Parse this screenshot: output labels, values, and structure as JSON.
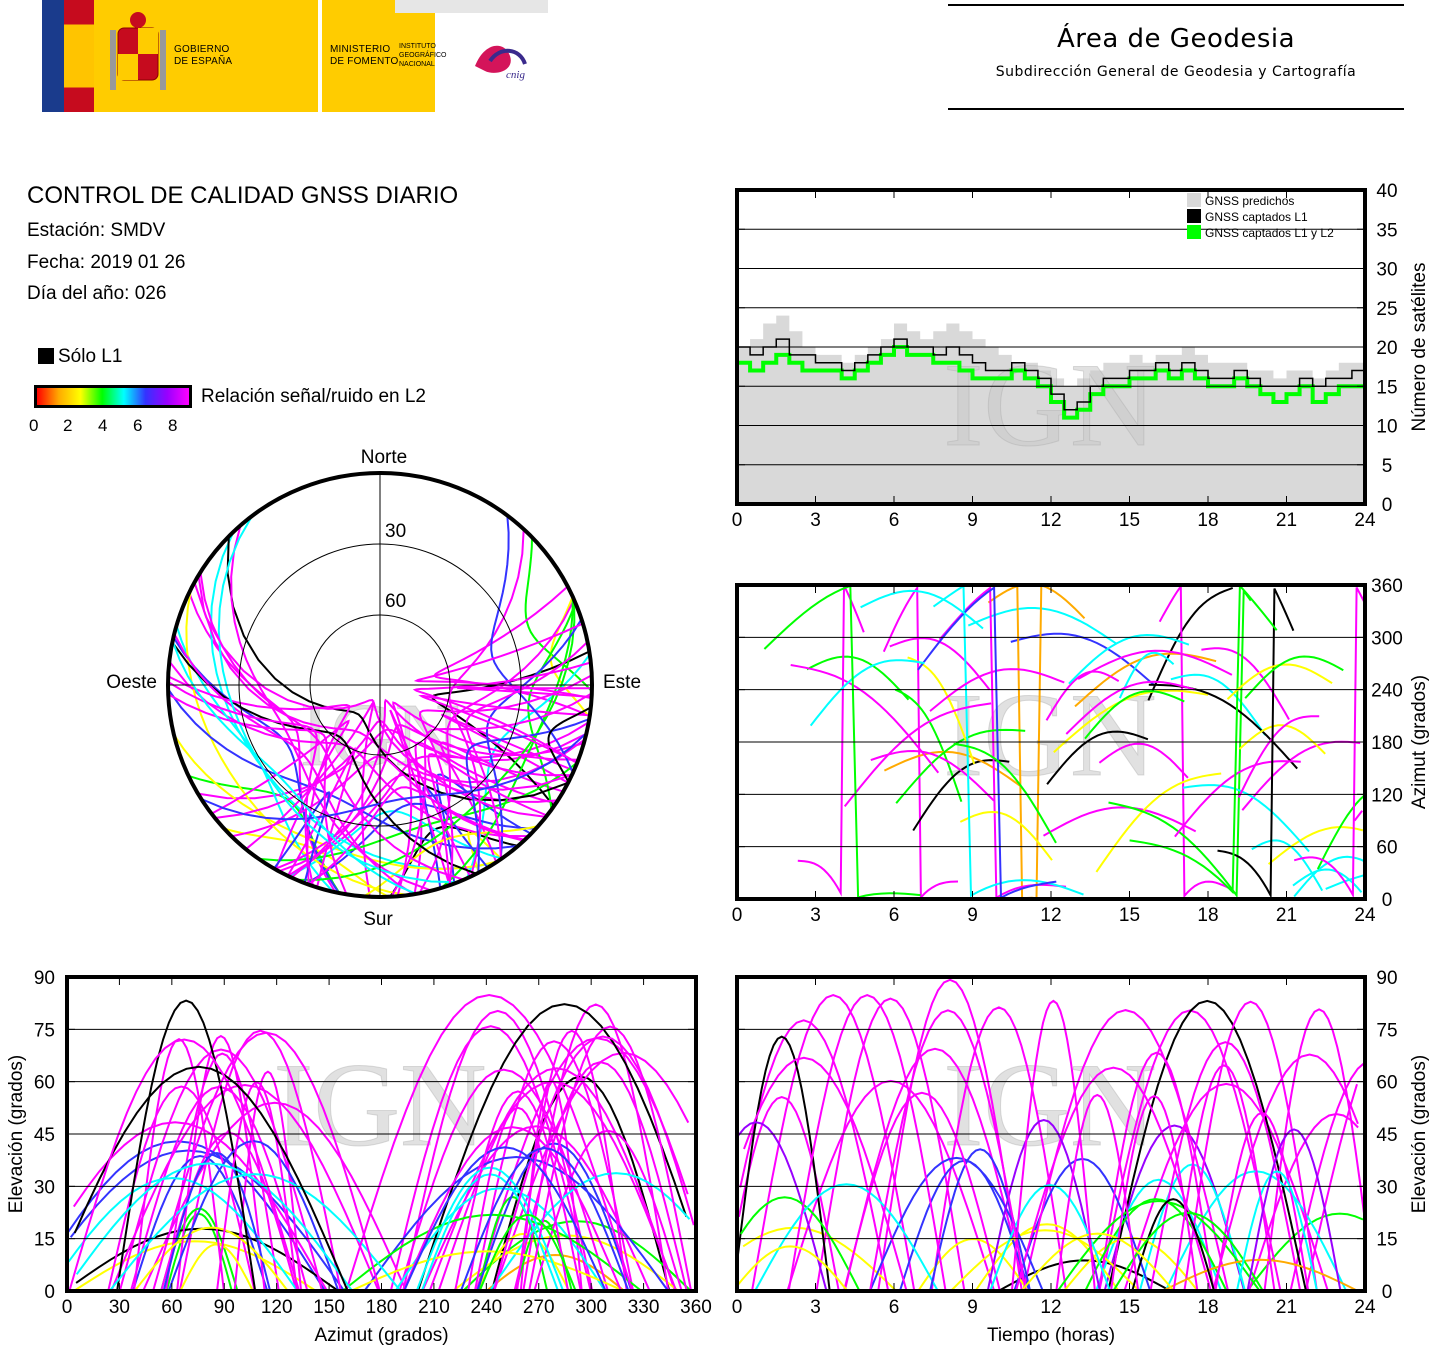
{
  "header": {
    "logos": {
      "gobierno": [
        "GOBIERNO",
        "DE ESPAÑA"
      ],
      "ministerio": [
        "MINISTERIO",
        "DE FOMENTO"
      ],
      "instituto": [
        "INSTITUTO",
        "GEOGRÁFICO",
        "NACIONAL"
      ],
      "cnig": "cnig"
    },
    "area_title": "Área de Geodesia",
    "area_subtitle": "Subdirección General de Geodesia y Cartografía"
  },
  "report": {
    "title": "CONTROL DE CALIDAD GNSS DIARIO",
    "station": "Estación: SMDV",
    "date": "Fecha: 2019 01 26",
    "doy": "Día del año: 026"
  },
  "legend": {
    "only_l1": "Sólo L1",
    "snr_label": "Relación señal/ruido en L2",
    "snr_ticks": [
      "0",
      "2",
      "4",
      "6",
      "8"
    ],
    "colors": [
      "#ff0000",
      "#ffaa00",
      "#ffff00",
      "#00ff00",
      "#00ffff",
      "#3333ff",
      "#9900ff",
      "#ff00ff"
    ]
  },
  "watermark": "IGN",
  "chart_data": [
    {
      "id": "skyplot",
      "type": "scatter",
      "title": "",
      "labels": {
        "north": "Norte",
        "south": "Sur",
        "east": "Este",
        "west": "Oeste"
      },
      "rings": [
        "30",
        "60"
      ],
      "series": [
        {
          "name": "trajectories SNR",
          "note": "colored satellite arcs, northern visibility gap"
        }
      ]
    },
    {
      "id": "satellites",
      "type": "line",
      "ylabel": "Número de satélites",
      "ylim": [
        0,
        40
      ],
      "yticks": [
        "0",
        "5",
        "10",
        "15",
        "20",
        "25",
        "30",
        "35",
        "40"
      ],
      "xlim": [
        0,
        24
      ],
      "xticks": [
        "0",
        "3",
        "6",
        "9",
        "12",
        "15",
        "18",
        "21",
        "24"
      ],
      "legend_items": [
        "GNSS predichos",
        "GNSS captados L1",
        "GNSS captados L1 y L2"
      ],
      "series_colors": [
        "#d9d9d9",
        "#000000",
        "#00ff00"
      ],
      "x": [
        0,
        0.5,
        1,
        1.5,
        2,
        2.5,
        3,
        3.5,
        4,
        4.5,
        5,
        5.5,
        6,
        6.5,
        7,
        7.5,
        8,
        8.5,
        9,
        9.5,
        10,
        10.5,
        11,
        11.5,
        12,
        12.5,
        13,
        13.5,
        14,
        14.5,
        15,
        15.5,
        16,
        16.5,
        17,
        17.5,
        18,
        18.5,
        19,
        19.5,
        20,
        20.5,
        21,
        21.5,
        22,
        22.5,
        23,
        23.5,
        24
      ],
      "series": [
        {
          "name": "GNSS predichos",
          "values": [
            20,
            21,
            23,
            24,
            22,
            20,
            19,
            19,
            18,
            19,
            20,
            21,
            23,
            22,
            21,
            22,
            23,
            22,
            21,
            20,
            19,
            18,
            18,
            17,
            16,
            15,
            16,
            17,
            18,
            18,
            19,
            18,
            19,
            19,
            20,
            19,
            18,
            18,
            18,
            17,
            17,
            16,
            17,
            17,
            16,
            17,
            18,
            18,
            19
          ]
        },
        {
          "name": "GNSS captados L1",
          "values": [
            20,
            19,
            20,
            21,
            19,
            19,
            18,
            18,
            17,
            18,
            19,
            20,
            21,
            20,
            20,
            19,
            20,
            19,
            18,
            17,
            17,
            18,
            17,
            16,
            14,
            12,
            13,
            15,
            16,
            16,
            17,
            17,
            18,
            17,
            18,
            17,
            16,
            16,
            17,
            16,
            15,
            15,
            15,
            16,
            15,
            16,
            16,
            17,
            20
          ]
        },
        {
          "name": "GNSS captados L1 y L2",
          "values": [
            18,
            17,
            18,
            19,
            18,
            17,
            17,
            17,
            16,
            17,
            18,
            19,
            20,
            19,
            19,
            18,
            18,
            17,
            16,
            16,
            16,
            17,
            16,
            15,
            13,
            11,
            12,
            14,
            15,
            15,
            16,
            16,
            17,
            16,
            17,
            16,
            15,
            15,
            16,
            15,
            14,
            13,
            14,
            15,
            13,
            14,
            15,
            15,
            18
          ]
        }
      ]
    },
    {
      "id": "azimuth_time",
      "type": "scatter",
      "ylabel": "Azimut (grados)",
      "ylim": [
        0,
        360
      ],
      "yticks": [
        "0",
        "60",
        "120",
        "180",
        "240",
        "300",
        "360"
      ],
      "xlim": [
        0,
        24
      ],
      "xticks": [
        "0",
        "3",
        "6",
        "9",
        "12",
        "15",
        "18",
        "21",
        "24"
      ]
    },
    {
      "id": "elevation_azimuth",
      "type": "scatter",
      "xlabel": "Azimut (grados)",
      "ylabel": "Elevación (grados)",
      "xlim": [
        0,
        360
      ],
      "ylim": [
        0,
        90
      ],
      "xticks": [
        "0",
        "30",
        "60",
        "90",
        "120",
        "150",
        "180",
        "210",
        "240",
        "270",
        "300",
        "330",
        "360"
      ],
      "yticks": [
        "0",
        "15",
        "30",
        "45",
        "60",
        "75",
        "90"
      ]
    },
    {
      "id": "elevation_time",
      "type": "line",
      "xlabel": "Tiempo (horas)",
      "ylabel": "Elevación (grados)",
      "xlim": [
        0,
        24
      ],
      "ylim": [
        0,
        90
      ],
      "xticks": [
        "0",
        "3",
        "6",
        "9",
        "12",
        "15",
        "18",
        "21",
        "24"
      ],
      "yticks": [
        "0",
        "15",
        "30",
        "45",
        "60",
        "75",
        "90"
      ]
    }
  ]
}
